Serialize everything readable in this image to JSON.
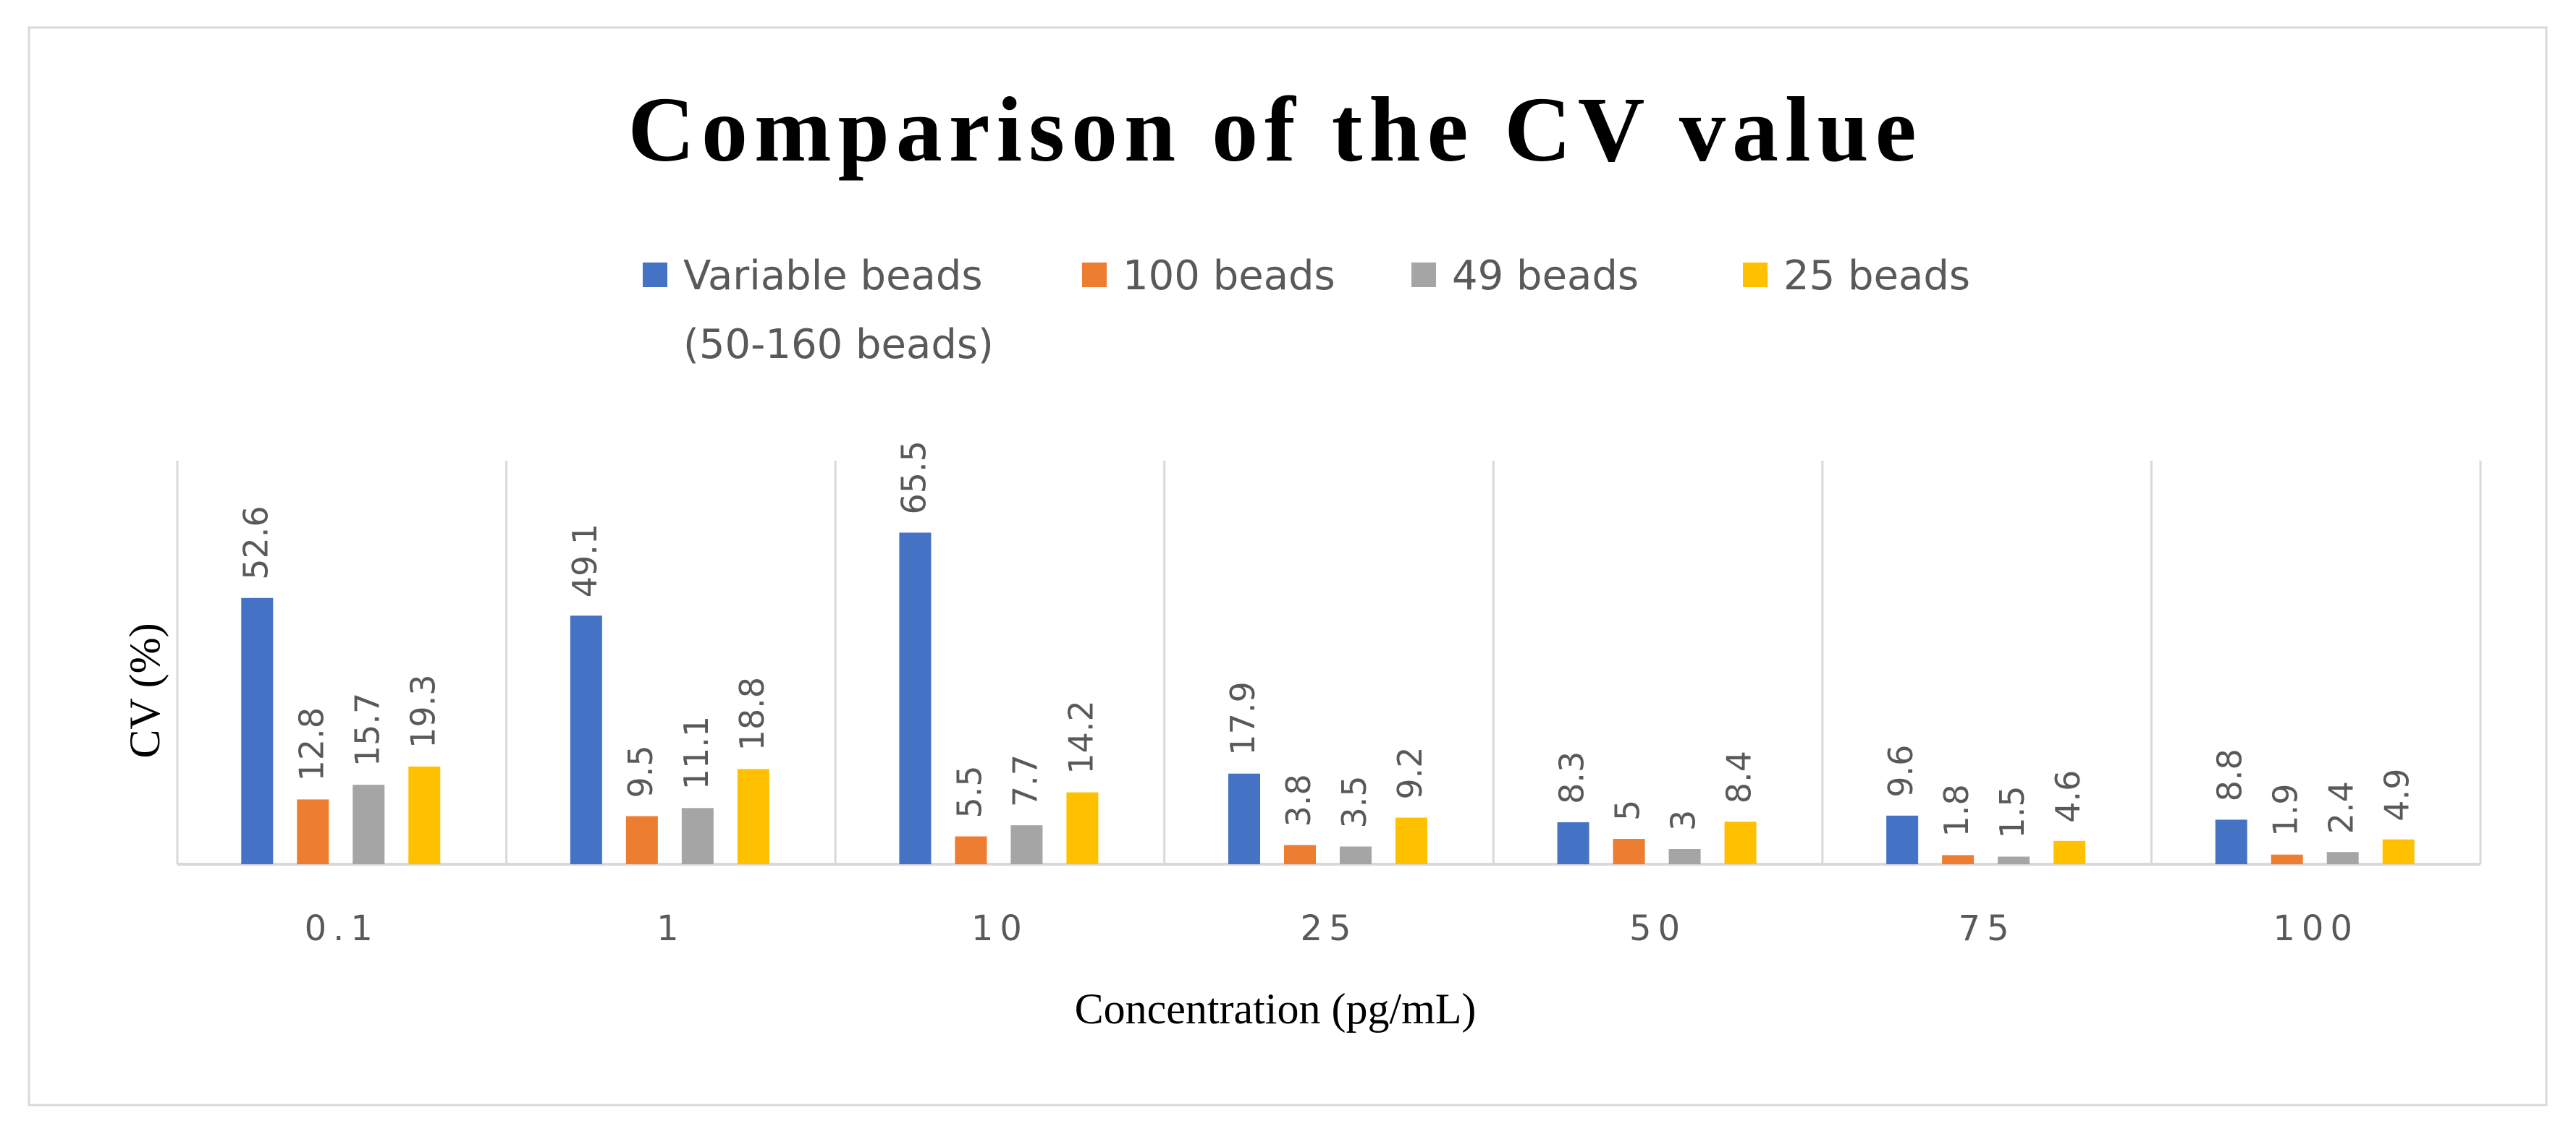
{
  "chart_data": {
    "type": "bar",
    "title": "Comparison of the CV value",
    "xlabel": "Concentration (pg/mL)",
    "ylabel": "CV (%)",
    "categories": [
      "0.1",
      "1",
      "10",
      "25",
      "50",
      "75",
      "100"
    ],
    "series": [
      {
        "name": "Variable beads",
        "name_line2": "(50-160 beads)",
        "color": "#4472C4",
        "values": [
          52.6,
          49.1,
          65.5,
          17.9,
          8.3,
          9.6,
          8.8
        ],
        "labels": [
          "52.6",
          "49.1",
          "65.5",
          "17.9",
          "8.3",
          "9.6",
          "8.8"
        ]
      },
      {
        "name": "100 beads",
        "color": "#ED7D31",
        "values": [
          12.8,
          9.5,
          5.5,
          3.8,
          5,
          1.8,
          1.9
        ],
        "labels": [
          "12.8",
          "9.5",
          "5.5",
          "3.8",
          "5",
          "1.8",
          "1.9"
        ]
      },
      {
        "name": "49 beads",
        "color": "#A5A5A5",
        "values": [
          15.7,
          11.1,
          7.7,
          3.5,
          3,
          1.5,
          2.4
        ],
        "labels": [
          "15.7",
          "11.1",
          "7.7",
          "3.5",
          "3",
          "1.5",
          "2.4"
        ]
      },
      {
        "name": "25 beads",
        "color": "#FFC000",
        "values": [
          19.3,
          18.8,
          14.2,
          9.2,
          8.4,
          4.6,
          4.9
        ],
        "labels": [
          "19.3",
          "18.8",
          "14.2",
          "9.2",
          "8.4",
          "4.6",
          "4.9"
        ]
      }
    ],
    "ylim": [
      0,
      80
    ],
    "grid": "vertical separators",
    "legend": "top-center"
  }
}
